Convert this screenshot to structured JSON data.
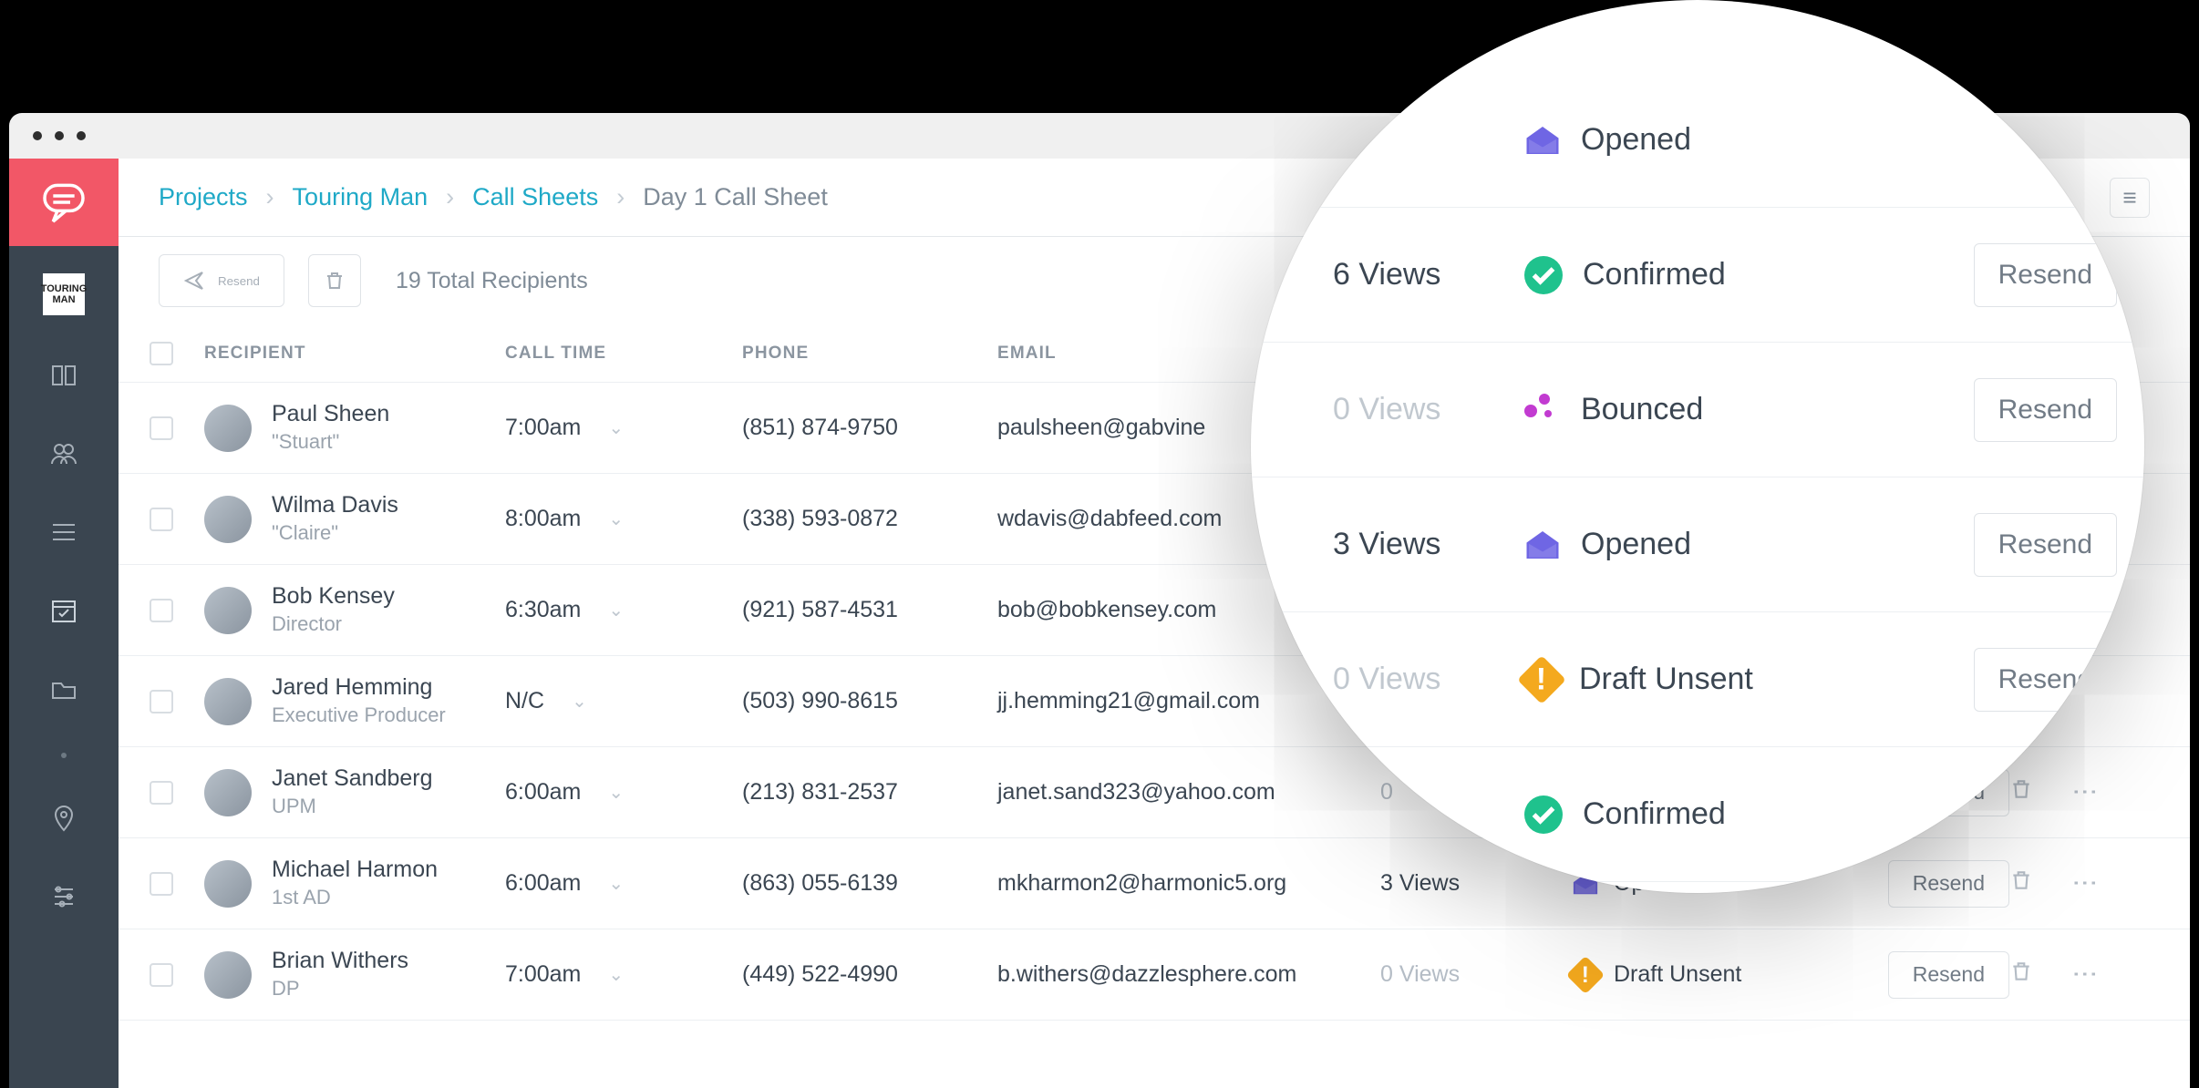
{
  "colors": {
    "brand_red": "#f25767",
    "sidebar_bg": "#3a4550",
    "link": "#1fa9c7",
    "text": "#3b4652",
    "text_muted": "#9aa3ad",
    "border": "#eceff2",
    "status_opened": "#6f66e4",
    "status_confirmed": "#1fc28d",
    "status_bounced": "#c23bd1",
    "status_draft": "#f4a91e"
  },
  "sidebar": {
    "project_tile_label": "TOURING MAN",
    "items": [
      {
        "icon": "board-icon",
        "label": "Boards"
      },
      {
        "icon": "people-icon",
        "label": "People"
      },
      {
        "icon": "lists-icon",
        "label": "Lists"
      },
      {
        "icon": "calendar-icon",
        "label": "Call Sheets",
        "active": true
      },
      {
        "icon": "folder-icon",
        "label": "Files"
      }
    ],
    "footer_items": [
      {
        "icon": "location-icon",
        "label": "Locations"
      },
      {
        "icon": "sliders-icon",
        "label": "Settings"
      }
    ]
  },
  "breadcrumbs": {
    "items": [
      {
        "label": "Projects",
        "href": true
      },
      {
        "label": "Touring Man",
        "href": true
      },
      {
        "label": "Call Sheets",
        "href": true
      },
      {
        "label": "Day 1 Call Sheet",
        "href": false
      }
    ]
  },
  "toolbar": {
    "resend_label": "Resend",
    "total_recipients_label": "19 Total Recipients"
  },
  "table": {
    "columns": {
      "recipient": "RECIPIENT",
      "call_time": "CALL TIME",
      "phone": "PHONE",
      "email": "EMAIL"
    },
    "resend_button_label": "Resend",
    "rows": [
      {
        "name": "Paul Sheen",
        "role": "\"Stuart\"",
        "call_time": "7:00am",
        "phone": "(851) 874-9750",
        "email": "paulsheen@gabvine"
      },
      {
        "name": "Wilma Davis",
        "role": "\"Claire\"",
        "call_time": "8:00am",
        "phone": "(338) 593-0872",
        "email": "wdavis@dabfeed.com"
      },
      {
        "name": "Bob Kensey",
        "role": "Director",
        "call_time": "6:30am",
        "phone": "(921) 587-4531",
        "email": "bob@bobkensey.com"
      },
      {
        "name": "Jared Hemming",
        "role": "Executive Producer",
        "call_time": "N/C",
        "phone": "(503) 990-8615",
        "email": "jj.hemming21@gmail.com"
      },
      {
        "name": "Janet Sandberg",
        "role": "UPM",
        "call_time": "6:00am",
        "phone": "(213) 831-2537",
        "email": "janet.sand323@yahoo.com",
        "views": "0",
        "status": "",
        "resend": "end"
      },
      {
        "name": "Michael Harmon",
        "role": "1st AD",
        "call_time": "6:00am",
        "phone": "(863) 055-6139",
        "email": "mkharmon2@harmonic5.org",
        "views": "3 Views",
        "status": "Opened",
        "status_type": "opened",
        "resend": "Resend"
      },
      {
        "name": "Brian Withers",
        "role": "DP",
        "call_time": "7:00am",
        "phone": "(449) 522-4990",
        "email": "b.withers@dazzlesphere.com",
        "views": "0 Views",
        "status": "Draft Unsent",
        "status_type": "draft",
        "resend": "Resend"
      }
    ]
  },
  "magnifier": {
    "rows": [
      {
        "views": "",
        "status": "Opened",
        "status_type": "opened",
        "resend": ""
      },
      {
        "views": "6 Views",
        "status": "Confirmed",
        "status_type": "confirmed",
        "resend": "Resend"
      },
      {
        "views": "0 Views",
        "views_dim": true,
        "status": "Bounced",
        "status_type": "bounced",
        "resend": "Resend"
      },
      {
        "views": "3 Views",
        "status": "Opened",
        "status_type": "opened",
        "resend": "Resend"
      },
      {
        "views": "0 Views",
        "views_dim": true,
        "status": "Draft Unsent",
        "status_type": "draft",
        "resend": "Resend"
      },
      {
        "views": "",
        "status": "Confirmed",
        "status_type": "confirmed",
        "resend": ""
      }
    ]
  }
}
